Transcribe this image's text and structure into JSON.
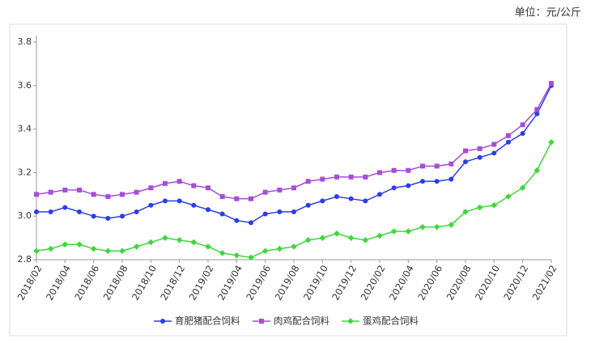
{
  "chart_data": {
    "type": "line",
    "unit_label": "单位：元/公斤",
    "categories": [
      "2018/02",
      null,
      "2018/04",
      null,
      "2018/06",
      null,
      "2018/08",
      null,
      "2018/10",
      null,
      "2018/12",
      null,
      "2019/02",
      null,
      "2019/04",
      null,
      "2019/06",
      null,
      "2019/08",
      null,
      "2019/10",
      null,
      "2019/12",
      null,
      "2020/02",
      null,
      "2020/04",
      null,
      "2020/06",
      null,
      "2020/08",
      null,
      "2020/10",
      null,
      "2020/12",
      null,
      "2021/02"
    ],
    "series": [
      {
        "name": "育肥猪配合饲料",
        "color": "#2b3ee6",
        "marker": "circle",
        "values": [
          3.02,
          3.02,
          3.04,
          3.02,
          3.0,
          2.99,
          3.0,
          3.02,
          3.05,
          3.07,
          3.07,
          3.05,
          3.03,
          3.01,
          2.98,
          2.97,
          3.01,
          3.02,
          3.02,
          3.05,
          3.07,
          3.09,
          3.08,
          3.07,
          3.1,
          3.13,
          3.14,
          3.16,
          3.16,
          3.17,
          3.25,
          3.27,
          3.29,
          3.34,
          3.38,
          3.47,
          3.6
        ]
      },
      {
        "name": "肉鸡配合饲料",
        "color": "#a64ddb",
        "marker": "square",
        "values": [
          3.1,
          3.11,
          3.12,
          3.12,
          3.1,
          3.09,
          3.1,
          3.11,
          3.13,
          3.15,
          3.16,
          3.14,
          3.13,
          3.09,
          3.08,
          3.08,
          3.11,
          3.12,
          3.13,
          3.16,
          3.17,
          3.18,
          3.18,
          3.18,
          3.2,
          3.21,
          3.21,
          3.23,
          3.23,
          3.24,
          3.3,
          3.31,
          3.33,
          3.37,
          3.42,
          3.49,
          3.61
        ]
      },
      {
        "name": "蛋鸡配合饲料",
        "color": "#3fd63f",
        "marker": "diamond",
        "values": [
          2.84,
          2.85,
          2.87,
          2.87,
          2.85,
          2.84,
          2.84,
          2.86,
          2.88,
          2.9,
          2.89,
          2.88,
          2.86,
          2.83,
          2.82,
          2.81,
          2.84,
          2.85,
          2.86,
          2.89,
          2.9,
          2.92,
          2.9,
          2.89,
          2.91,
          2.93,
          2.93,
          2.95,
          2.95,
          2.96,
          3.02,
          3.04,
          3.05,
          3.09,
          3.13,
          3.21,
          3.34
        ]
      }
    ],
    "ylim": [
      2.8,
      3.8
    ],
    "yticks": [
      2.8,
      {
        "value": 3.0,
        "label": "3.0"
      },
      3.2,
      3.4,
      3.6,
      3.8
    ],
    "grid": false,
    "legend": "bottom"
  }
}
